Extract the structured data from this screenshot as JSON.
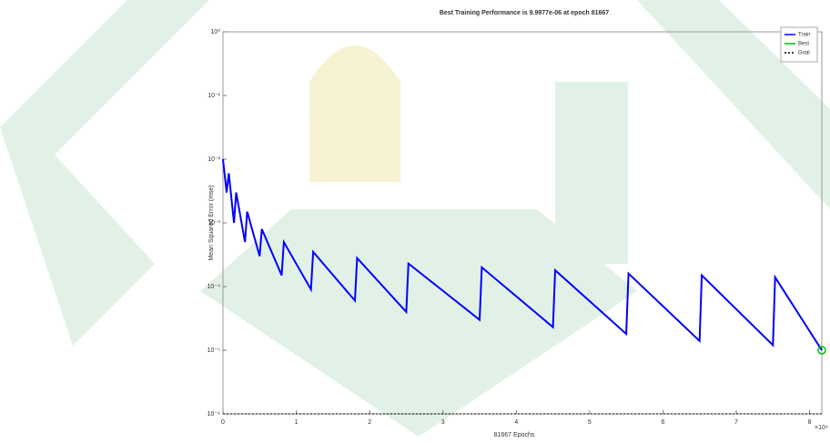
{
  "chart_data": {
    "type": "line",
    "title": "Best Training Performance is 9.9977e-06 at epoch 81667",
    "x_label": "81667 Epochs",
    "y_label": "Mean Squared Error (mse)",
    "x_multiplier": "×10⁴",
    "log_y": true,
    "legend_position": "upper right",
    "xlim": [
      0,
      81667
    ],
    "ylim": [
      1e-06,
      1
    ],
    "xticks": [
      {
        "value": 0,
        "label": "0"
      },
      {
        "value": 10000,
        "label": "1"
      },
      {
        "value": 20000,
        "label": "2"
      },
      {
        "value": 30000,
        "label": "3"
      },
      {
        "value": 40000,
        "label": "4"
      },
      {
        "value": 50000,
        "label": "5"
      },
      {
        "value": 60000,
        "label": "6"
      },
      {
        "value": 70000,
        "label": "7"
      },
      {
        "value": 80000,
        "label": "8"
      }
    ],
    "yticks": [
      {
        "value": 1,
        "label": "10⁰"
      },
      {
        "value": 0.1,
        "label": "10⁻¹"
      },
      {
        "value": 0.01,
        "label": "10⁻²"
      },
      {
        "value": 0.001,
        "label": "10⁻³"
      },
      {
        "value": 0.0001,
        "label": "10⁻⁴"
      },
      {
        "value": 1e-05,
        "label": "10⁻⁵"
      },
      {
        "value": 1e-06,
        "label": "10⁻⁶"
      }
    ],
    "series": [
      {
        "name": "Train",
        "color": "#0000ff",
        "x": [
          0,
          500,
          800,
          1500,
          1800,
          3000,
          3300,
          5000,
          5300,
          8000,
          8300,
          12000,
          12300,
          18000,
          18300,
          25000,
          25300,
          35000,
          35300,
          45000,
          45300,
          55000,
          55300,
          65000,
          65300,
          75000,
          75300,
          81667
        ],
        "values": [
          0.01,
          0.003,
          0.006,
          0.001,
          0.003,
          0.0005,
          0.0015,
          0.0003,
          0.0008,
          0.00015,
          0.0005,
          9e-05,
          0.00035,
          6e-05,
          0.00028,
          4e-05,
          0.00023,
          3e-05,
          0.0002,
          2.3e-05,
          0.00018,
          1.8e-05,
          0.00016,
          1.4e-05,
          0.00015,
          1.2e-05,
          0.00014,
          1e-05
        ]
      },
      {
        "name": "Best",
        "color": "#00c000",
        "x": [
          81667
        ],
        "values": [
          1e-05
        ]
      },
      {
        "name": "Goal",
        "color": "#000000",
        "x": [
          0,
          81667
        ],
        "values": [
          1e-06,
          1e-06
        ]
      }
    ]
  }
}
